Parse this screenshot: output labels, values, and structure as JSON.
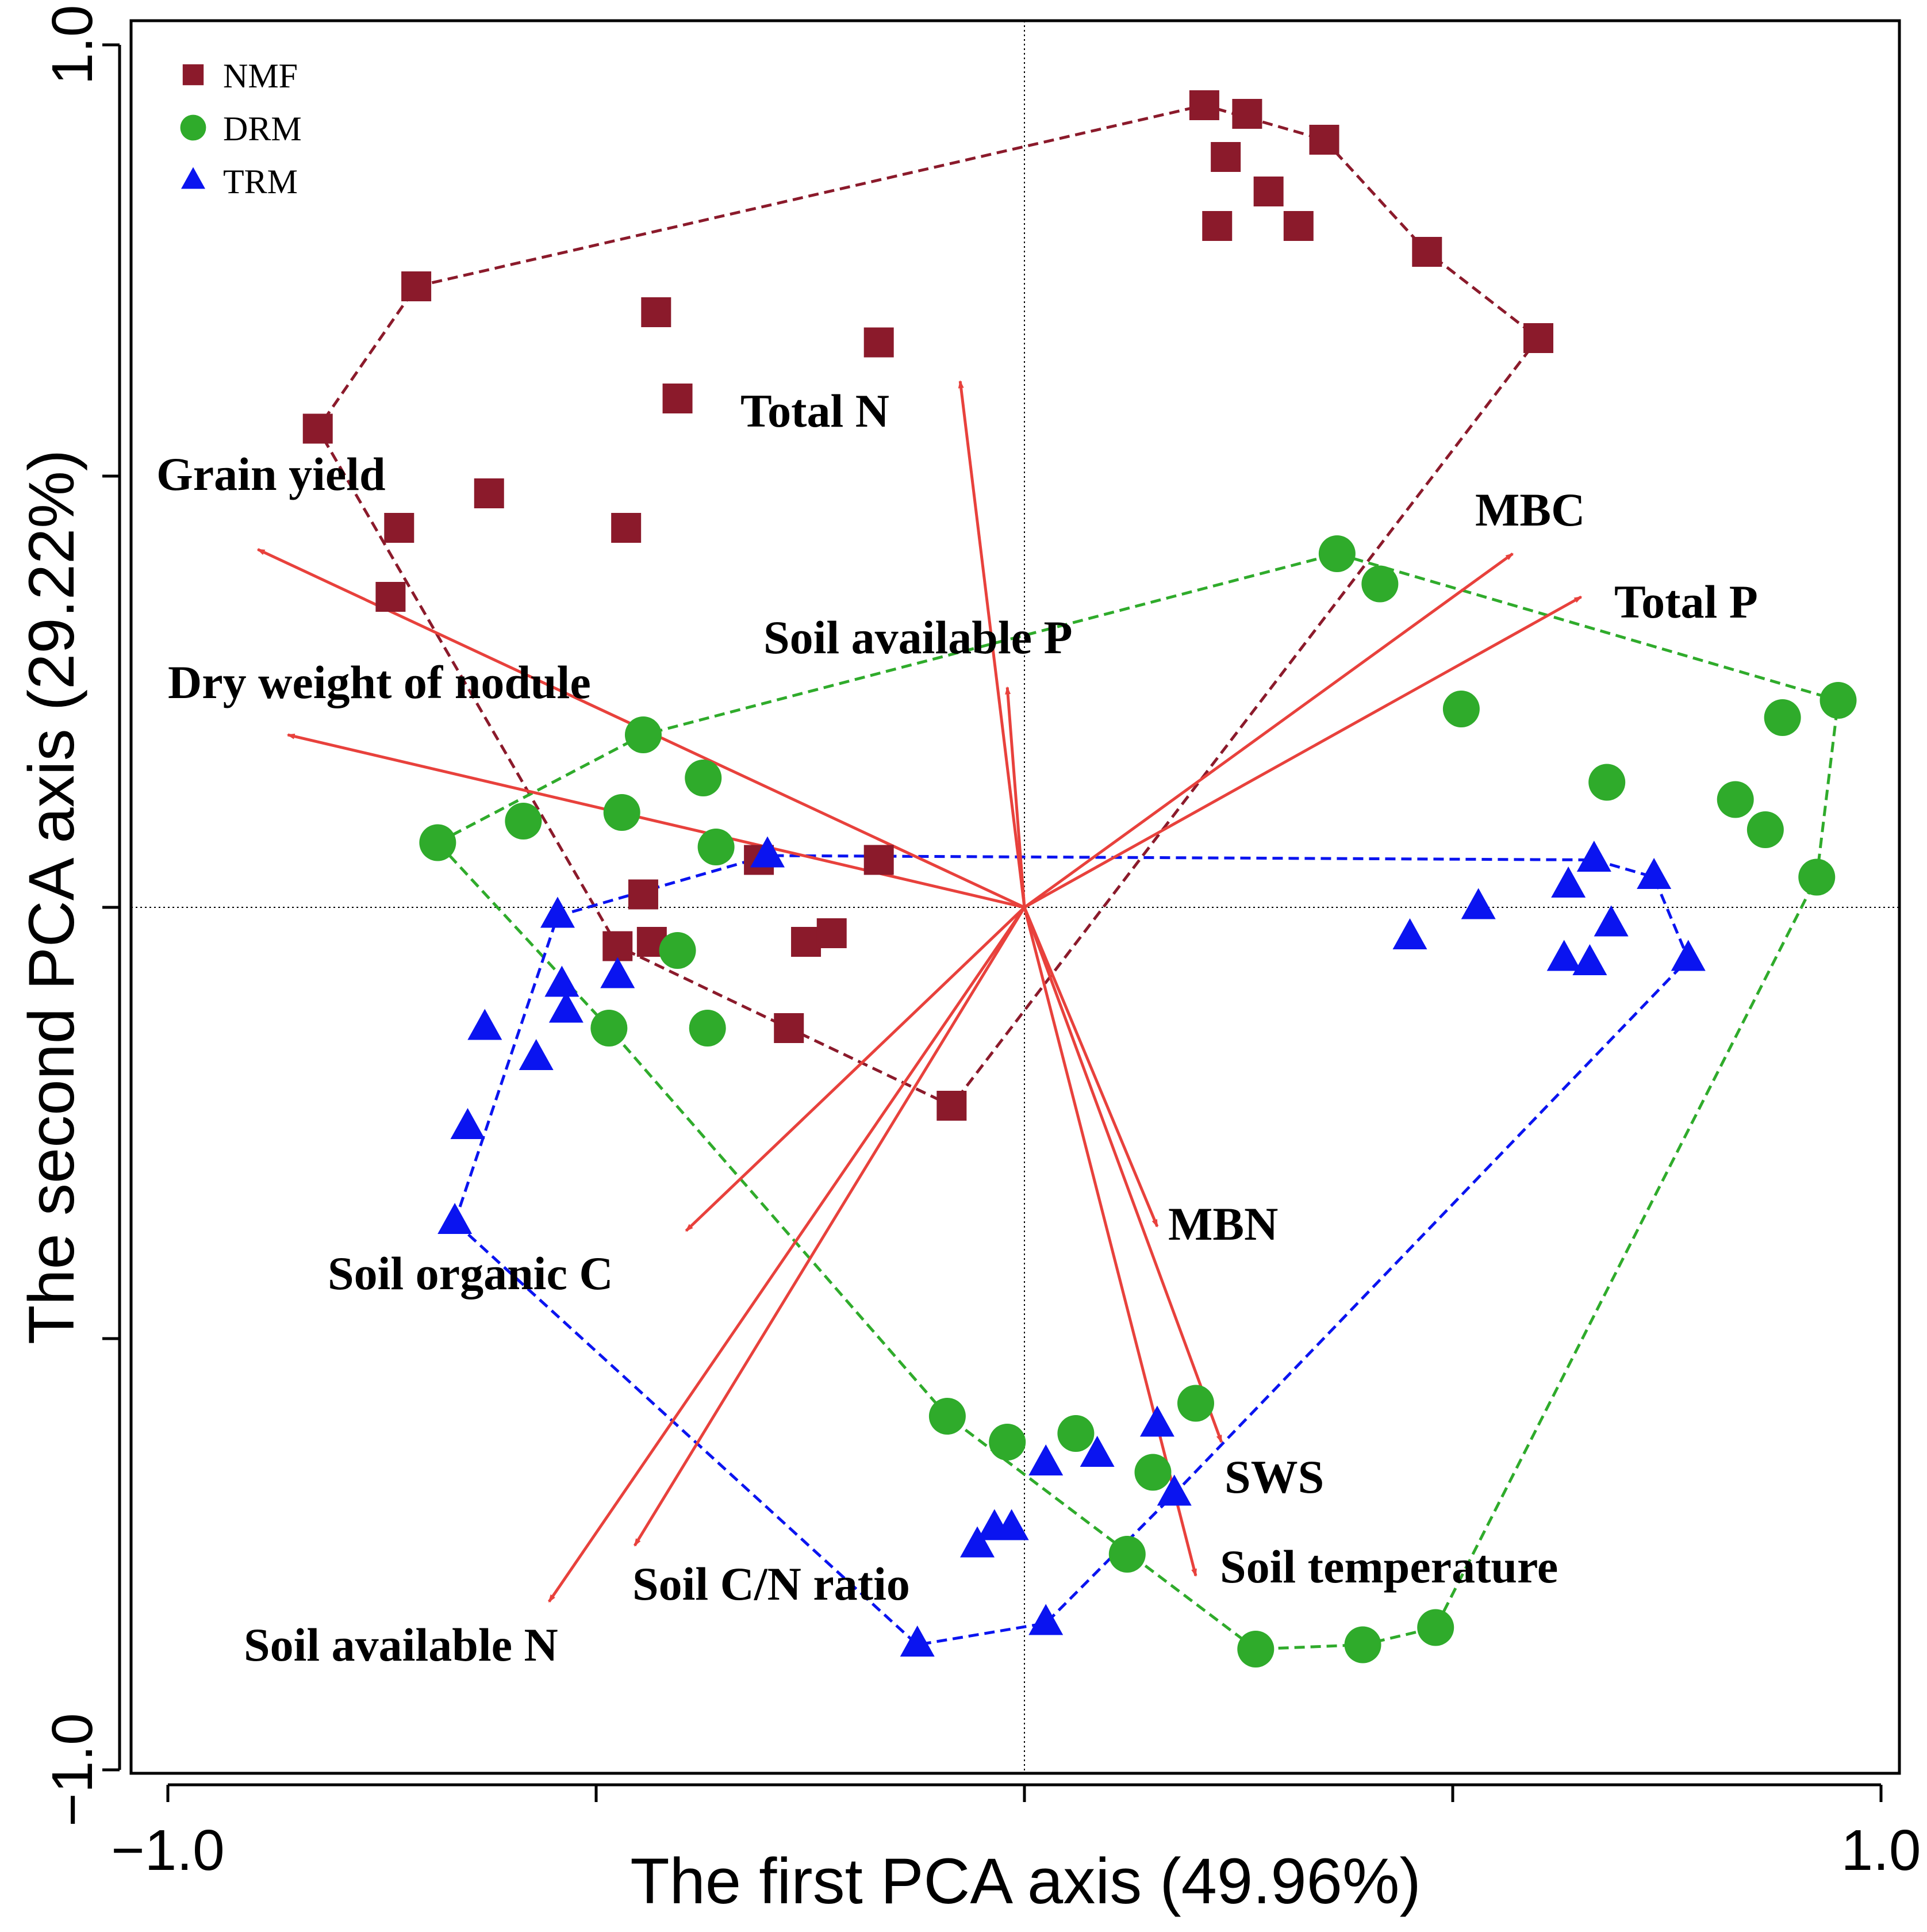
{
  "chart_data": {
    "type": "scatter",
    "title": "",
    "xlabel": "The first PCA axis (49.96%)",
    "ylabel": "The second PCA axis (29.22%)",
    "xlim": [
      -1.0,
      1.0
    ],
    "ylim": [
      -1.0,
      1.0
    ],
    "x_ticks": [
      -1.0,
      -0.5,
      0.0,
      0.5,
      1.0
    ],
    "y_ticks": [
      -1.0,
      -0.5,
      0.0,
      0.5,
      1.0
    ],
    "x_tick_labels": [
      "−1.0",
      "",
      "",
      "",
      "1.0"
    ],
    "y_tick_labels": [
      "−1.0",
      "",
      "",
      "",
      "1.0"
    ],
    "legend_position": "top-left",
    "colors": {
      "NMF": "#8b1a2b",
      "DRM": "#2fab2b",
      "TRM": "#0a14f0",
      "vector": "#e8413c"
    },
    "series": [
      {
        "name": "NMF",
        "marker": "square",
        "points": [
          [
            0.21,
            0.93
          ],
          [
            0.26,
            0.92
          ],
          [
            0.35,
            0.89
          ],
          [
            0.235,
            0.87
          ],
          [
            0.285,
            0.83
          ],
          [
            0.225,
            0.79
          ],
          [
            0.32,
            0.79
          ],
          [
            0.47,
            0.76
          ],
          [
            0.6,
            0.66
          ],
          [
            -0.71,
            0.72
          ],
          [
            -0.43,
            0.69
          ],
          [
            -0.17,
            0.655
          ],
          [
            -0.405,
            0.59
          ],
          [
            -0.825,
            0.555
          ],
          [
            -0.625,
            0.48
          ],
          [
            -0.73,
            0.44
          ],
          [
            -0.465,
            0.44
          ],
          [
            -0.74,
            0.36
          ],
          [
            -0.31,
            0.055
          ],
          [
            -0.17,
            0.055
          ],
          [
            -0.445,
            0.015
          ],
          [
            -0.475,
            -0.045
          ],
          [
            -0.435,
            -0.04
          ],
          [
            -0.255,
            -0.04
          ],
          [
            -0.225,
            -0.03
          ],
          [
            -0.275,
            -0.14
          ],
          [
            -0.085,
            -0.23
          ]
        ],
        "hull": [
          [
            -0.71,
            0.72
          ],
          [
            0.21,
            0.93
          ],
          [
            0.35,
            0.89
          ],
          [
            0.47,
            0.76
          ],
          [
            0.6,
            0.66
          ],
          [
            -0.085,
            -0.23
          ],
          [
            -0.275,
            -0.14
          ],
          [
            -0.475,
            -0.045
          ],
          [
            -0.825,
            0.555
          ],
          [
            -0.71,
            0.72
          ]
        ]
      },
      {
        "name": "DRM",
        "marker": "circle",
        "points": [
          [
            0.365,
            0.41
          ],
          [
            0.415,
            0.375
          ],
          [
            0.51,
            0.23
          ],
          [
            0.885,
            0.22
          ],
          [
            0.95,
            0.24
          ],
          [
            0.68,
            0.145
          ],
          [
            0.83,
            0.125
          ],
          [
            0.865,
            0.09
          ],
          [
            0.925,
            0.035
          ],
          [
            -0.445,
            0.2
          ],
          [
            -0.375,
            0.15
          ],
          [
            -0.47,
            0.11
          ],
          [
            -0.585,
            0.1
          ],
          [
            -0.36,
            0.07
          ],
          [
            -0.685,
            0.075
          ],
          [
            -0.405,
            -0.05
          ],
          [
            -0.485,
            -0.14
          ],
          [
            -0.37,
            -0.14
          ],
          [
            -0.09,
            -0.59
          ],
          [
            -0.02,
            -0.62
          ],
          [
            0.06,
            -0.61
          ],
          [
            0.2,
            -0.575
          ],
          [
            0.15,
            -0.655
          ],
          [
            0.12,
            -0.75
          ],
          [
            0.27,
            -0.86
          ],
          [
            0.395,
            -0.855
          ],
          [
            0.48,
            -0.835
          ]
        ],
        "hull": [
          [
            -0.685,
            0.075
          ],
          [
            -0.445,
            0.2
          ],
          [
            0.365,
            0.41
          ],
          [
            0.95,
            0.24
          ],
          [
            0.925,
            0.035
          ],
          [
            0.48,
            -0.835
          ],
          [
            0.395,
            -0.855
          ],
          [
            0.27,
            -0.86
          ],
          [
            -0.09,
            -0.59
          ],
          [
            -0.485,
            -0.14
          ],
          [
            -0.685,
            0.075
          ]
        ]
      },
      {
        "name": "TRM",
        "marker": "triangle",
        "points": [
          [
            0.665,
            0.055
          ],
          [
            0.735,
            0.035
          ],
          [
            0.635,
            0.025
          ],
          [
            0.53,
            0.0
          ],
          [
            0.45,
            -0.035
          ],
          [
            0.685,
            -0.02
          ],
          [
            0.63,
            -0.06
          ],
          [
            0.66,
            -0.065
          ],
          [
            0.775,
            -0.06
          ],
          [
            -0.3,
            0.06
          ],
          [
            -0.545,
            -0.01
          ],
          [
            -0.54,
            -0.09
          ],
          [
            -0.475,
            -0.08
          ],
          [
            -0.535,
            -0.12
          ],
          [
            -0.63,
            -0.14
          ],
          [
            -0.57,
            -0.175
          ],
          [
            -0.65,
            -0.255
          ],
          [
            -0.665,
            -0.365
          ],
          [
            0.155,
            -0.6
          ],
          [
            0.085,
            -0.635
          ],
          [
            0.025,
            -0.645
          ],
          [
            0.175,
            -0.68
          ],
          [
            -0.035,
            -0.72
          ],
          [
            -0.015,
            -0.72
          ],
          [
            -0.055,
            -0.74
          ],
          [
            -0.125,
            -0.855
          ],
          [
            0.025,
            -0.83
          ]
        ],
        "hull": [
          [
            -0.665,
            -0.365
          ],
          [
            -0.545,
            -0.01
          ],
          [
            -0.3,
            0.06
          ],
          [
            0.665,
            0.055
          ],
          [
            0.735,
            0.035
          ],
          [
            0.775,
            -0.06
          ],
          [
            0.175,
            -0.68
          ],
          [
            0.025,
            -0.83
          ],
          [
            -0.125,
            -0.855
          ],
          [
            -0.665,
            -0.365
          ]
        ]
      }
    ],
    "vectors": [
      {
        "label": "Total N",
        "x": -0.075,
        "y": 0.61
      },
      {
        "label": "Grain yield",
        "x": -0.895,
        "y": 0.415
      },
      {
        "label": "MBC",
        "x": 0.57,
        "y": 0.41
      },
      {
        "label": "Total P",
        "x": 0.65,
        "y": 0.36
      },
      {
        "label": "Soil available P",
        "x": -0.02,
        "y": 0.255
      },
      {
        "label": "Dry weight of nodule",
        "x": -0.86,
        "y": 0.2
      },
      {
        "label": "MBN",
        "x": 0.155,
        "y": -0.37
      },
      {
        "label": "Soil organic C",
        "x": -0.395,
        "y": -0.375
      },
      {
        "label": "SWS",
        "x": 0.23,
        "y": -0.62
      },
      {
        "label": "Soil temperature",
        "x": 0.2,
        "y": -0.775
      },
      {
        "label": "Soil C/N ratio",
        "x": -0.455,
        "y": -0.74
      },
      {
        "label": "Soil available N",
        "x": -0.555,
        "y": -0.805
      }
    ]
  }
}
